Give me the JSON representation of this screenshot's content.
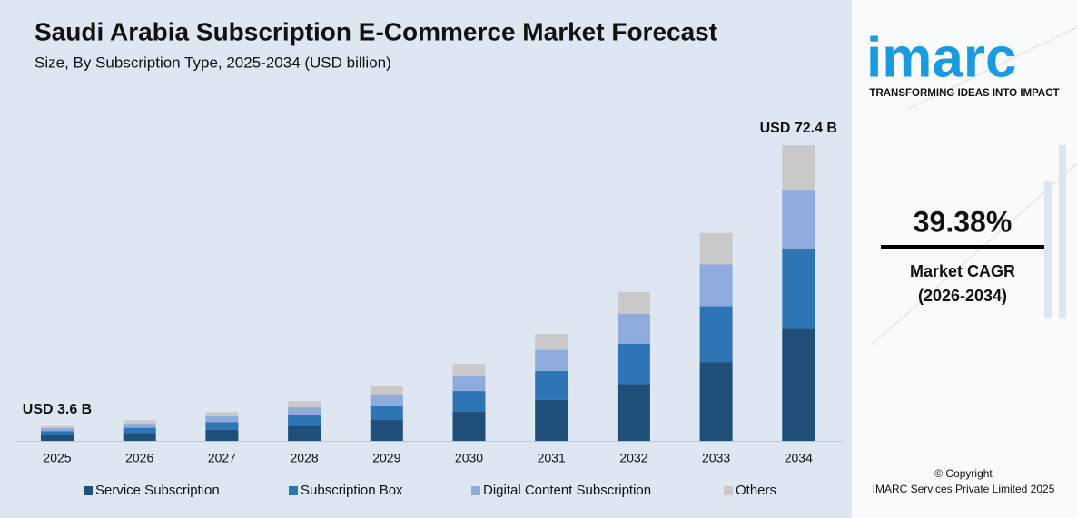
{
  "chart_data": {
    "type": "stacked_bar",
    "title": "Saudi Arabia Subscription E-Commerce Market Forecast",
    "subtitle": "Size, By Subscription Type, 2025-2034 (USD billion)",
    "categories": [
      "2025",
      "2026",
      "2027",
      "2028",
      "2029",
      "2030",
      "2031",
      "2032",
      "2033",
      "2034"
    ],
    "series": [
      {
        "name": "Service Subscription",
        "color": "#1f4e79",
        "values": [
          1.4,
          1.9,
          2.7,
          3.7,
          5.1,
          7.1,
          10.0,
          13.9,
          19.3,
          27.5
        ]
      },
      {
        "name": "Subscription Box",
        "color": "#2e75b6",
        "values": [
          1.0,
          1.3,
          1.9,
          2.6,
          3.6,
          5.1,
          7.1,
          9.9,
          13.7,
          19.5
        ]
      },
      {
        "name": "Digital Content Subscription",
        "color": "#8faadc",
        "values": [
          0.7,
          1.0,
          1.4,
          1.9,
          2.7,
          3.8,
          5.2,
          7.3,
          10.2,
          14.5
        ]
      },
      {
        "name": "Others",
        "color": "#c9c9c9",
        "values": [
          0.5,
          0.8,
          1.0,
          1.5,
          2.1,
          2.8,
          3.9,
          5.4,
          7.7,
          10.9
        ]
      }
    ],
    "total_labels": [
      {
        "category": "2025",
        "value": 3.6,
        "label": "USD 3.6 B"
      },
      {
        "category": "2034",
        "value": 72.4,
        "label": "USD 72.4 B"
      }
    ]
  },
  "panel": {
    "logo": "imarc",
    "tagline": "TRANSFORMING IDEAS INTO IMPACT",
    "cagr": "39.38%",
    "cagr_label": "Market CAGR",
    "cagr_period": "(2026-2034)",
    "copyright": "© Copyright",
    "company": "IMARC Services Private Limited 2025"
  }
}
